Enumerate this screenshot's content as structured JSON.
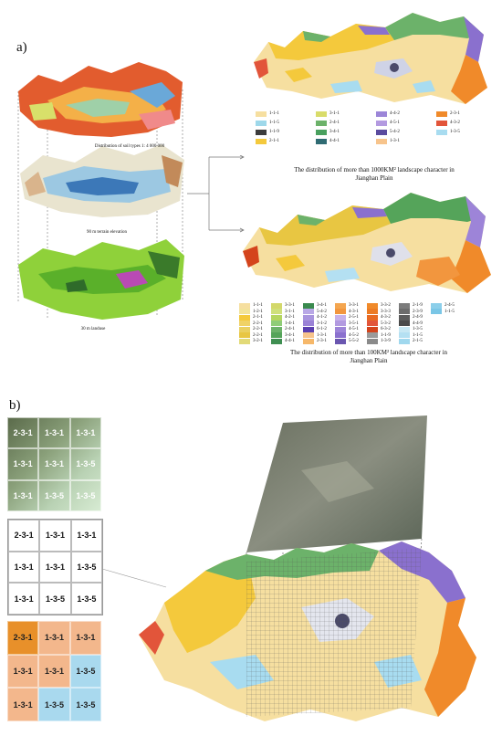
{
  "panel_a": {
    "label": "a)",
    "layer_captions": [
      "Distribution of soil types 1: 4 000 000",
      "90 m terrain elevation",
      "30 m landuse"
    ],
    "map1_caption_line1": "The distribution of more than 1000KM² landscape character in",
    "map1_caption_line2": "Jianghan Plain",
    "map2_caption_line1": "The distribution of more than 100KM² landscape character in",
    "map2_caption_line2": "Jianghan Plain",
    "legend1": [
      {
        "code": "1-1-1",
        "color": "#f6dfa0"
      },
      {
        "code": "1-1-5",
        "color": "#9ed8ea"
      },
      {
        "code": "1-1-9",
        "color": "#3c3c3c"
      },
      {
        "code": "2-1-1",
        "color": "#f4c93c"
      },
      {
        "code": "3-1-1",
        "color": "#d9dc6a"
      },
      {
        "code": "2-4-1",
        "color": "#6cb26a"
      },
      {
        "code": "3-4-1",
        "color": "#49a05e"
      },
      {
        "code": "4-4-1",
        "color": "#2f6b73"
      },
      {
        "code": "4-4-2",
        "color": "#9c86d8"
      },
      {
        "code": "4-5-1",
        "color": "#b39ae0"
      },
      {
        "code": "5-4-2",
        "color": "#5a4b9e"
      },
      {
        "code": "1-3-1",
        "color": "#f7c48c"
      },
      {
        "code": "2-3-1",
        "color": "#f08a2a"
      },
      {
        "code": "4-3-2",
        "color": "#e2553a"
      },
      {
        "code": "1-3-5",
        "color": "#a8dcf0"
      }
    ],
    "legend2": [
      {
        "code": "1-1-1",
        "color": "#f6dfa0"
      },
      {
        "code": "1-2-1",
        "color": "#f2e39a"
      },
      {
        "code": "2-1-1",
        "color": "#f4c93c"
      },
      {
        "code": "2-2-1",
        "color": "#f0d266"
      },
      {
        "code": "2-2-1",
        "color": "#ead060"
      },
      {
        "code": "2-2-1",
        "color": "#e8c642"
      },
      {
        "code": "3-2-1",
        "color": "#e2da78"
      },
      {
        "code": "3-3-1",
        "color": "#d3d86a"
      },
      {
        "code": "3-1-1",
        "color": "#cfe07a"
      },
      {
        "code": "4-2-1",
        "color": "#b5d660"
      },
      {
        "code": "1-4-1",
        "color": "#8fcc78"
      },
      {
        "code": "2-4-1",
        "color": "#6cb26a"
      },
      {
        "code": "3-4-1",
        "color": "#55a45a"
      },
      {
        "code": "4-4-1",
        "color": "#3f8f52"
      },
      {
        "code": "3-4-1",
        "color": "#3a8a4e"
      },
      {
        "code": "5-4-2",
        "color": "#b9a8e6"
      },
      {
        "code": "4-1-2",
        "color": "#a995de"
      },
      {
        "code": "3-1-2",
        "color": "#9a82d6"
      },
      {
        "code": "6-1-2",
        "color": "#5b3fb0"
      },
      {
        "code": "1-3-1",
        "color": "#f7c48c"
      },
      {
        "code": "2-3-1",
        "color": "#f6b86a"
      },
      {
        "code": "3-3-1",
        "color": "#f4a650"
      },
      {
        "code": "4-3-1",
        "color": "#f2963e"
      },
      {
        "code": "2-5-1",
        "color": "#c7b2ea"
      },
      {
        "code": "3-5-1",
        "color": "#b29ae0"
      },
      {
        "code": "4-5-1",
        "color": "#9d84d8"
      },
      {
        "code": "4-5-2",
        "color": "#8a70ce"
      },
      {
        "code": "5-5-2",
        "color": "#6a56b0"
      },
      {
        "code": "3-3-2",
        "color": "#f08a2a"
      },
      {
        "code": "3-3-3",
        "color": "#ec7b24"
      },
      {
        "code": "4-3-2",
        "color": "#e86a22"
      },
      {
        "code": "5-3-2",
        "color": "#e2553a"
      },
      {
        "code": "6-3-2",
        "color": "#d4441c"
      },
      {
        "code": "1-1-9",
        "color": "#9a9a9a"
      },
      {
        "code": "1-3-9",
        "color": "#8a8a8a"
      },
      {
        "code": "2-1-9",
        "color": "#7c7c7c"
      },
      {
        "code": "2-3-9",
        "color": "#6c6c6c"
      },
      {
        "code": "2-4-9",
        "color": "#5c5c5c"
      },
      {
        "code": "4-4-9",
        "color": "#4a4a4a"
      },
      {
        "code": "1-3-5",
        "color": "#c8e8f4"
      },
      {
        "code": "1-1-5",
        "color": "#b4e0f2"
      },
      {
        "code": "2-1-5",
        "color": "#a0d8ee"
      },
      {
        "code": "2-4-5",
        "color": "#8ccfea"
      },
      {
        "code": "1-1-5",
        "color": "#7ac6e6"
      }
    ]
  },
  "panel_b": {
    "label": "b)",
    "grid_codes": [
      [
        "2-3-1",
        "1-3-1",
        "1-3-1"
      ],
      [
        "1-3-1",
        "1-3-1",
        "1-3-5"
      ],
      [
        "1-3-1",
        "1-3-5",
        "1-3-5"
      ]
    ],
    "grid_colors": [
      [
        "#e8902a",
        "#f3b78c",
        "#f3b78c"
      ],
      [
        "#f3b78c",
        "#f3b78c",
        "#a9d9ee"
      ],
      [
        "#f3b78c",
        "#a9d9ee",
        "#a9d9ee"
      ]
    ]
  },
  "colors": {
    "plain": "#f6dfa0",
    "yellow": "#f4c93c",
    "green": "#6cb26a",
    "purple": "#8a70ce",
    "orange": "#f08a2a",
    "red": "#e2553a",
    "water": "#a8dcf0"
  }
}
